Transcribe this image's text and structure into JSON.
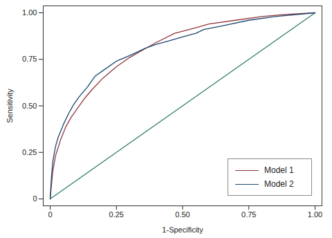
{
  "chart_data": {
    "type": "line",
    "xlabel": "1-Specificity",
    "ylabel": "Sensitivity",
    "xlim": [
      0,
      1
    ],
    "ylim": [
      0,
      1
    ],
    "xticks": [
      0,
      0.25,
      {
        "value": 0.5,
        "label": "0.50"
      },
      0.75,
      {
        "value": 1,
        "label": "1.00"
      }
    ],
    "yticks": [
      0,
      0.25,
      {
        "value": 0.5,
        "label": "0.50"
      },
      0.75,
      {
        "value": 1,
        "label": "1.00"
      }
    ],
    "grid": false,
    "legend": "bottom-right",
    "series": [
      {
        "color": "#2f7a6b",
        "x": [
          0,
          1
        ],
        "values": [
          0,
          1
        ]
      },
      {
        "name": "Model 1",
        "color": "#90353b",
        "x": [
          0,
          0.01,
          0.02,
          0.04,
          0.06,
          0.08,
          0.1,
          0.13,
          0.16,
          0.2,
          0.25,
          0.3,
          0.35,
          0.4,
          0.47,
          0.55,
          0.6,
          0.7,
          0.8,
          0.88,
          1
        ],
        "values": [
          0,
          0.15,
          0.23,
          0.32,
          0.39,
          0.44,
          0.48,
          0.54,
          0.59,
          0.65,
          0.71,
          0.76,
          0.8,
          0.84,
          0.89,
          0.92,
          0.94,
          0.96,
          0.98,
          0.99,
          1
        ]
      },
      {
        "name": "Model 2",
        "color": "#1a476f",
        "x": [
          0,
          0.005,
          0.01,
          0.02,
          0.03,
          0.05,
          0.07,
          0.09,
          0.11,
          0.14,
          0.17,
          0.2,
          0.25,
          0.3,
          0.36,
          0.4,
          0.45,
          0.5,
          0.55,
          0.58,
          0.65,
          0.75,
          0.85,
          1
        ],
        "values": [
          0,
          0.12,
          0.2,
          0.28,
          0.33,
          0.4,
          0.46,
          0.51,
          0.55,
          0.6,
          0.66,
          0.69,
          0.74,
          0.77,
          0.81,
          0.83,
          0.85,
          0.87,
          0.89,
          0.91,
          0.93,
          0.96,
          0.98,
          1
        ]
      }
    ]
  }
}
